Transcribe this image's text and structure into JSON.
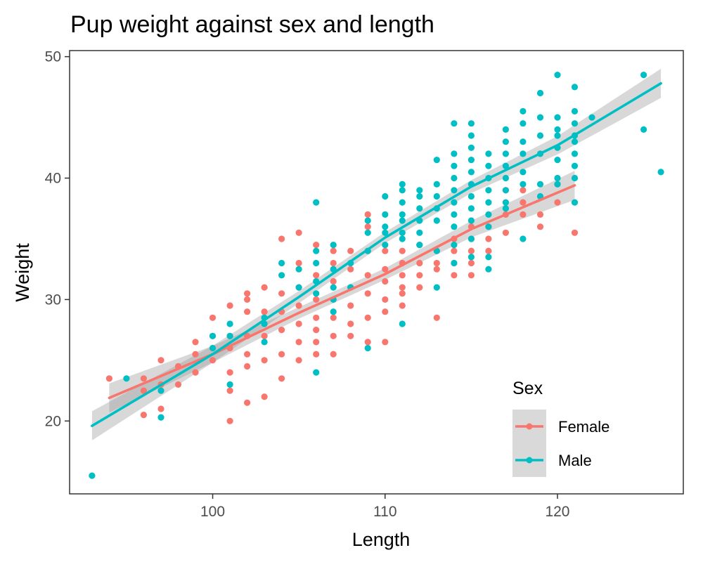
{
  "chart_data": {
    "type": "scatter",
    "title": "Pup weight against sex and length",
    "xlabel": "Length",
    "ylabel": "Weight",
    "xlim": [
      91.7,
      127.3
    ],
    "ylim": [
      14.0,
      50.5
    ],
    "x_ticks": [
      100,
      110,
      120
    ],
    "y_ticks": [
      20,
      30,
      40,
      50
    ],
    "grid": false,
    "legend": {
      "title": "Sex",
      "position": "bottom-right",
      "entries": [
        "Female",
        "Male"
      ]
    },
    "series": [
      {
        "name": "Female",
        "color": "#F8766D",
        "points": [
          [
            94,
            23.5
          ],
          [
            96,
            23.5
          ],
          [
            96,
            22.5
          ],
          [
            96,
            20.5
          ],
          [
            97,
            25
          ],
          [
            97,
            21
          ],
          [
            97,
            23
          ],
          [
            98,
            24.5
          ],
          [
            98,
            23
          ],
          [
            99,
            25.5
          ],
          [
            99,
            26.5
          ],
          [
            99,
            24
          ],
          [
            100,
            28.5
          ],
          [
            100,
            27
          ],
          [
            100,
            25
          ],
          [
            101,
            29.5
          ],
          [
            101,
            27
          ],
          [
            101,
            26
          ],
          [
            101,
            24
          ],
          [
            101,
            22.5
          ],
          [
            101,
            20
          ],
          [
            102,
            30
          ],
          [
            102,
            29
          ],
          [
            102,
            27
          ],
          [
            102,
            25.5
          ],
          [
            102,
            24.5
          ],
          [
            102,
            21.5
          ],
          [
            102,
            30.5
          ],
          [
            103,
            31
          ],
          [
            103,
            29
          ],
          [
            103,
            28
          ],
          [
            103,
            27
          ],
          [
            103,
            25
          ],
          [
            103,
            22
          ],
          [
            104,
            35
          ],
          [
            104,
            30.5
          ],
          [
            104,
            29
          ],
          [
            104,
            27.5
          ],
          [
            104,
            25.5
          ],
          [
            104,
            23.5
          ],
          [
            105,
            35.5
          ],
          [
            105,
            33
          ],
          [
            105,
            31
          ],
          [
            105,
            29.5
          ],
          [
            105,
            28
          ],
          [
            105,
            26.5
          ],
          [
            105,
            25
          ],
          [
            106,
            34.5
          ],
          [
            106,
            32
          ],
          [
            106,
            30
          ],
          [
            106,
            28.5
          ],
          [
            106,
            27.5
          ],
          [
            106,
            26.5
          ],
          [
            106,
            25.5
          ],
          [
            107,
            34
          ],
          [
            107,
            33
          ],
          [
            107,
            31.5
          ],
          [
            107,
            30
          ],
          [
            107,
            28.5
          ],
          [
            107,
            27
          ],
          [
            107,
            25.5
          ],
          [
            108,
            34
          ],
          [
            108,
            32.5
          ],
          [
            108,
            31
          ],
          [
            108,
            29.5
          ],
          [
            108,
            28
          ],
          [
            108,
            27
          ],
          [
            109,
            36
          ],
          [
            109,
            34
          ],
          [
            109,
            32
          ],
          [
            109,
            30.5
          ],
          [
            109,
            28.5
          ],
          [
            109,
            26.5
          ],
          [
            109,
            37
          ],
          [
            110,
            34
          ],
          [
            110,
            32.5
          ],
          [
            110,
            31.5
          ],
          [
            110,
            30
          ],
          [
            110,
            29
          ],
          [
            110,
            26.5
          ],
          [
            111,
            34
          ],
          [
            111,
            33
          ],
          [
            111,
            32
          ],
          [
            111,
            31
          ],
          [
            111,
            30.5
          ],
          [
            111,
            29.5
          ],
          [
            112,
            34.5
          ],
          [
            112,
            33
          ],
          [
            112,
            32
          ],
          [
            112,
            31
          ],
          [
            113,
            34
          ],
          [
            113,
            33
          ],
          [
            113,
            32.5
          ],
          [
            113,
            28.5
          ],
          [
            114,
            35
          ],
          [
            114,
            34
          ],
          [
            114,
            33
          ],
          [
            114,
            32
          ],
          [
            115,
            36
          ],
          [
            115,
            35
          ],
          [
            115,
            34
          ],
          [
            115,
            33
          ],
          [
            115,
            32
          ],
          [
            116,
            36
          ],
          [
            116,
            35
          ],
          [
            116,
            34
          ],
          [
            117,
            39
          ],
          [
            117,
            37
          ],
          [
            117,
            35.5
          ],
          [
            118,
            39
          ],
          [
            118,
            38
          ],
          [
            118,
            37
          ],
          [
            119,
            37
          ],
          [
            119,
            36
          ],
          [
            120,
            39.5
          ],
          [
            120,
            38
          ],
          [
            121,
            35.5
          ]
        ],
        "trend": [
          [
            94,
            21.9
          ],
          [
            100,
            25.5
          ],
          [
            105,
            28.9
          ],
          [
            110,
            32.1
          ],
          [
            115,
            35.8
          ],
          [
            121,
            39.4
          ]
        ]
      },
      {
        "name": "Male",
        "color": "#00BFC4",
        "points": [
          [
            93,
            15.5
          ],
          [
            95,
            23.5
          ],
          [
            97,
            22.5
          ],
          [
            97,
            20.3
          ],
          [
            100,
            27
          ],
          [
            100,
            26
          ],
          [
            101,
            28
          ],
          [
            101,
            27
          ],
          [
            101,
            23
          ],
          [
            103,
            28.5
          ],
          [
            103,
            28
          ],
          [
            103,
            26.5
          ],
          [
            104,
            33
          ],
          [
            104,
            32
          ],
          [
            105,
            32.5
          ],
          [
            105,
            31
          ],
          [
            106,
            38
          ],
          [
            106,
            34
          ],
          [
            106,
            33
          ],
          [
            106,
            31.5
          ],
          [
            106,
            30.5
          ],
          [
            106,
            24
          ],
          [
            107,
            34.5
          ],
          [
            107,
            32.5
          ],
          [
            107,
            31
          ],
          [
            107,
            30
          ],
          [
            107,
            29
          ],
          [
            108,
            33
          ],
          [
            108,
            31
          ],
          [
            109,
            36.5
          ],
          [
            109,
            35.5
          ],
          [
            109,
            34
          ],
          [
            109,
            26
          ],
          [
            110,
            38.5
          ],
          [
            110,
            37
          ],
          [
            110,
            36
          ],
          [
            110,
            35.5
          ],
          [
            110,
            34.5
          ],
          [
            111,
            39.5
          ],
          [
            111,
            39
          ],
          [
            111,
            38
          ],
          [
            111,
            37
          ],
          [
            111,
            36.5
          ],
          [
            111,
            35.5
          ],
          [
            111,
            35
          ],
          [
            111,
            28
          ],
          [
            112,
            39
          ],
          [
            112,
            38.5
          ],
          [
            112,
            37.5
          ],
          [
            112,
            36.5
          ],
          [
            112,
            35.5
          ],
          [
            112,
            34.5
          ],
          [
            113,
            41.5
          ],
          [
            113,
            39.5
          ],
          [
            113,
            38.5
          ],
          [
            113,
            37.5
          ],
          [
            113,
            36.5
          ],
          [
            113,
            34
          ],
          [
            113,
            31
          ],
          [
            114,
            44.5
          ],
          [
            114,
            42
          ],
          [
            114,
            41
          ],
          [
            114,
            40
          ],
          [
            114,
            39
          ],
          [
            114,
            38
          ],
          [
            114,
            37
          ],
          [
            114,
            36
          ],
          [
            114,
            34.5
          ],
          [
            114,
            33
          ],
          [
            115,
            44.5
          ],
          [
            115,
            43.5
          ],
          [
            115,
            42.5
          ],
          [
            115,
            41.5
          ],
          [
            115,
            40.5
          ],
          [
            115,
            39.5
          ],
          [
            115,
            38.5
          ],
          [
            115,
            37.5
          ],
          [
            115,
            36.5
          ],
          [
            115,
            35
          ],
          [
            115,
            33.5
          ],
          [
            116,
            42
          ],
          [
            116,
            41
          ],
          [
            116,
            40
          ],
          [
            116,
            39
          ],
          [
            116,
            38
          ],
          [
            116,
            37
          ],
          [
            116,
            36
          ],
          [
            116,
            33.5
          ],
          [
            116,
            32.5
          ],
          [
            117,
            44
          ],
          [
            117,
            43
          ],
          [
            117,
            42
          ],
          [
            117,
            41
          ],
          [
            117,
            40
          ],
          [
            117,
            39
          ],
          [
            117,
            38
          ],
          [
            117,
            37.5
          ],
          [
            118,
            45.5
          ],
          [
            118,
            44.5
          ],
          [
            118,
            43
          ],
          [
            118,
            42
          ],
          [
            118,
            40.5
          ],
          [
            118,
            39.5
          ],
          [
            118,
            35
          ],
          [
            119,
            47
          ],
          [
            119,
            45
          ],
          [
            119,
            43.5
          ],
          [
            119,
            42
          ],
          [
            119,
            39.5
          ],
          [
            119,
            38.5
          ],
          [
            120,
            48.5
          ],
          [
            120,
            45
          ],
          [
            120,
            44
          ],
          [
            120,
            43.5
          ],
          [
            120,
            42.5
          ],
          [
            120,
            41.5
          ],
          [
            120,
            40
          ],
          [
            120,
            39.5
          ],
          [
            121,
            47.5
          ],
          [
            121,
            45.5
          ],
          [
            121,
            44.5
          ],
          [
            121,
            43.5
          ],
          [
            121,
            43
          ],
          [
            121,
            42
          ],
          [
            121,
            41
          ],
          [
            121,
            40
          ],
          [
            121,
            38
          ],
          [
            122,
            45
          ],
          [
            125,
            48.5
          ],
          [
            125,
            44
          ],
          [
            126,
            40.5
          ]
        ],
        "trend": [
          [
            93,
            19.6
          ],
          [
            100,
            25.5
          ],
          [
            105,
            30.2
          ],
          [
            110,
            35.1
          ],
          [
            115,
            39.3
          ],
          [
            120,
            42.7
          ],
          [
            126,
            47.8
          ]
        ]
      }
    ]
  }
}
